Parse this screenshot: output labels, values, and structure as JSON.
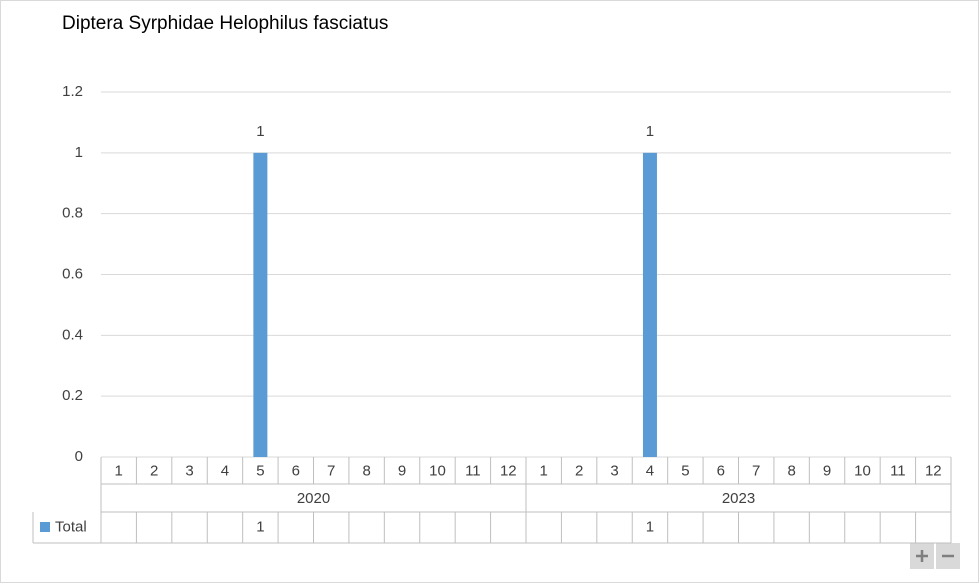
{
  "chart_data": {
    "type": "bar",
    "title": "Diptera Syrphidae Helophilus fasciatus",
    "categories": [
      "1",
      "2",
      "3",
      "4",
      "5",
      "6",
      "7",
      "8",
      "9",
      "10",
      "11",
      "12",
      "1",
      "2",
      "3",
      "4",
      "5",
      "6",
      "7",
      "8",
      "9",
      "10",
      "11",
      "12"
    ],
    "groups": [
      "2020",
      "2023"
    ],
    "series": [
      {
        "name": "Total",
        "color": "#5b9bd5",
        "values": [
          null,
          null,
          null,
          null,
          1,
          null,
          null,
          null,
          null,
          null,
          null,
          null,
          null,
          null,
          null,
          1,
          null,
          null,
          null,
          null,
          null,
          null,
          null,
          null
        ]
      }
    ],
    "ylim": [
      0,
      1.2
    ],
    "yticks": [
      0,
      0.2,
      0.4,
      0.6,
      0.8,
      1,
      1.2
    ],
    "grid": true,
    "data_labels": true,
    "data_table": true
  }
}
